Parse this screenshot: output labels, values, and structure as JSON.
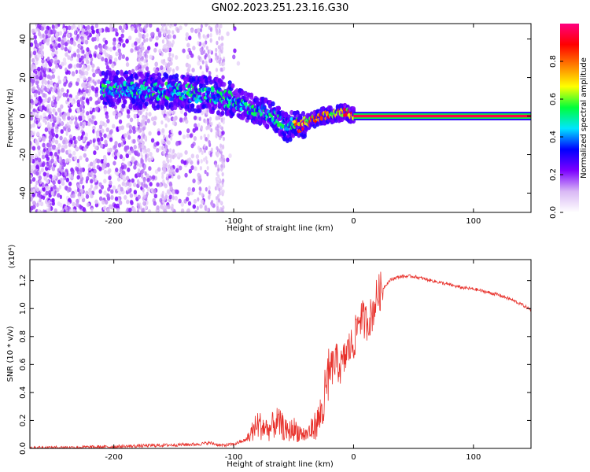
{
  "title": "GN02.2023.251.23.16.G30",
  "colors": {
    "snr_line": "#e8302a",
    "main_band": "#e8302a",
    "background": "#ffffff"
  },
  "chart_data": [
    {
      "type": "heatmap",
      "title": "GN02.2023.251.23.16.G30",
      "xlabel": "Height of straight line (km)",
      "ylabel": "Frequency (Hz)",
      "xlim": [
        -270,
        148
      ],
      "ylim": [
        -50,
        48
      ],
      "x_ticks": [
        -200,
        -100,
        0,
        100
      ],
      "x_tick_labels": [
        "-200",
        "-100",
        "0",
        "100"
      ],
      "y_ticks": [
        -40,
        -20,
        0,
        20,
        40
      ],
      "y_tick_labels": [
        "-40",
        "-20",
        "0",
        "20",
        "40"
      ],
      "colorbar": {
        "label": "Normalized spectral amplitude",
        "range": [
          0,
          1
        ],
        "ticks": [
          0.0,
          0.2,
          0.4,
          0.6,
          0.8
        ],
        "tick_labels": [
          "0.0",
          "0.2",
          "0.4",
          "0.6",
          "0.8"
        ],
        "colormap": [
          "#ffffff",
          "#d9b8f5",
          "#7c00ff",
          "#0000ff",
          "#00e5ff",
          "#00ff3a",
          "#ffff00",
          "#ff7f00",
          "#ff0000",
          "#ff0080"
        ]
      },
      "ridge": {
        "description_values": true,
        "x": [
          -200,
          -180,
          -160,
          -140,
          -120,
          -100,
          -90,
          -80,
          -70,
          -60,
          -55,
          -50,
          -45,
          -40,
          -35,
          -30,
          -25,
          -20,
          -15,
          -10,
          -5,
          0,
          50,
          100,
          148
        ],
        "frequency": [
          14,
          13,
          13,
          12,
          11,
          8,
          5,
          3,
          1,
          -3,
          -7,
          -3,
          -5,
          -4,
          -2,
          -1,
          0,
          1,
          1,
          2,
          2,
          0,
          0,
          0,
          0
        ]
      }
    },
    {
      "type": "line",
      "xlabel": "Height of straight line (km)",
      "ylabel": "SNR (10 * v/v)",
      "y_multiplier": "(x10⁴)",
      "xlim": [
        -270,
        148
      ],
      "ylim": [
        0,
        1.35
      ],
      "x_ticks": [
        -200,
        -100,
        0,
        100
      ],
      "x_tick_labels": [
        "-200",
        "-100",
        "0",
        "100"
      ],
      "y_ticks": [
        0.0,
        0.2,
        0.4,
        0.6,
        0.8,
        1.0,
        1.2
      ],
      "y_tick_labels": [
        "0.0",
        "0.2",
        "0.4",
        "0.6",
        "0.8",
        "1.0",
        "1.2"
      ],
      "series": [
        {
          "x": [
            -270,
            -250,
            -230,
            -210,
            -190,
            -170,
            -150,
            -130,
            -120,
            -110,
            -100,
            -90,
            -85,
            -80,
            -75,
            -70,
            -65,
            -60,
            -55,
            -50,
            -45,
            -40,
            -35,
            -30,
            -25,
            -20,
            -15,
            -10,
            -5,
            0,
            5,
            10,
            15,
            20,
            25,
            30,
            35,
            40,
            50,
            60,
            70,
            80,
            90,
            100,
            110,
            120,
            130,
            140,
            148
          ],
          "y": [
            0.005,
            0.006,
            0.008,
            0.01,
            0.015,
            0.02,
            0.025,
            0.03,
            0.04,
            0.02,
            0.03,
            0.06,
            0.12,
            0.18,
            0.16,
            0.14,
            0.2,
            0.17,
            0.12,
            0.15,
            0.12,
            0.1,
            0.14,
            0.2,
            0.32,
            0.55,
            0.62,
            0.58,
            0.7,
            0.75,
            0.95,
            0.9,
            0.95,
            1.1,
            1.15,
            1.2,
            1.22,
            1.23,
            1.23,
            1.21,
            1.19,
            1.17,
            1.15,
            1.14,
            1.12,
            1.1,
            1.07,
            1.03,
            0.99
          ]
        }
      ]
    }
  ]
}
